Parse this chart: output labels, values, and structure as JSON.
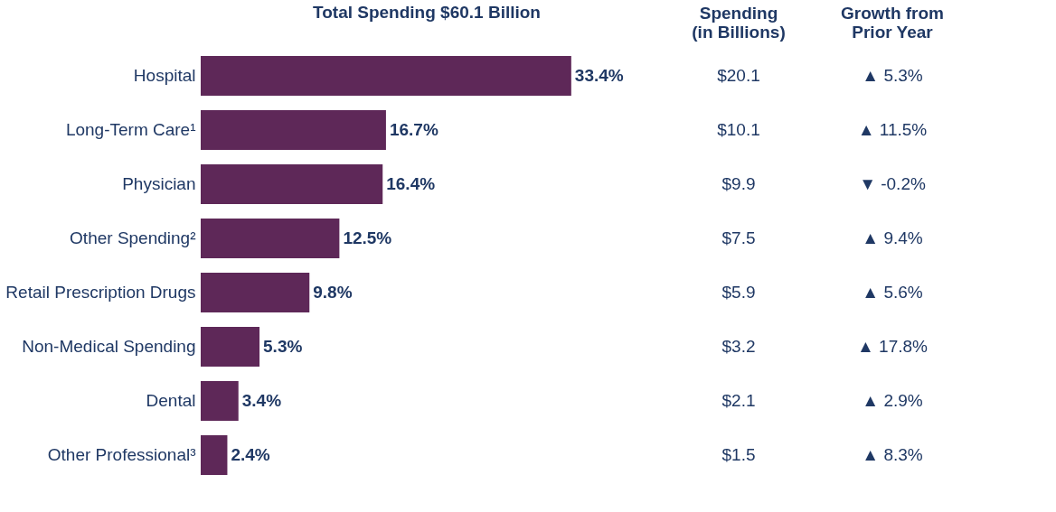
{
  "chart_data": {
    "type": "bar",
    "orientation": "horizontal",
    "title": "Total Spending $60.1 Billion",
    "categories": [
      "Hospital",
      "Long-Term Care¹",
      "Physician",
      "Other Spending²",
      "Retail Prescription Drugs",
      "Non-Medical Spending",
      "Dental",
      "Other Professional³"
    ],
    "values": [
      33.4,
      16.7,
      16.4,
      12.5,
      9.8,
      5.3,
      3.4,
      2.4
    ],
    "value_labels": [
      "33.4%",
      "16.7%",
      "16.4%",
      "12.5%",
      "9.8%",
      "5.3%",
      "3.4%",
      "2.4%"
    ],
    "color": "#5e2858",
    "annotations": [
      "Spending\n(in Billions)",
      "Growth from\nPrior Year",
      "$20.1",
      "▲ 5.3%",
      "$10.1",
      "▲ 11.5%",
      "$9.9",
      "▼ -0.2%",
      "$7.5",
      "▲ 9.4%",
      "$5.9",
      "▲ 5.6%",
      "$3.2",
      "▲ 17.8%",
      "$2.1",
      "▲ 2.9%",
      "$1.5",
      "▲ 8.3%"
    ]
  }
}
